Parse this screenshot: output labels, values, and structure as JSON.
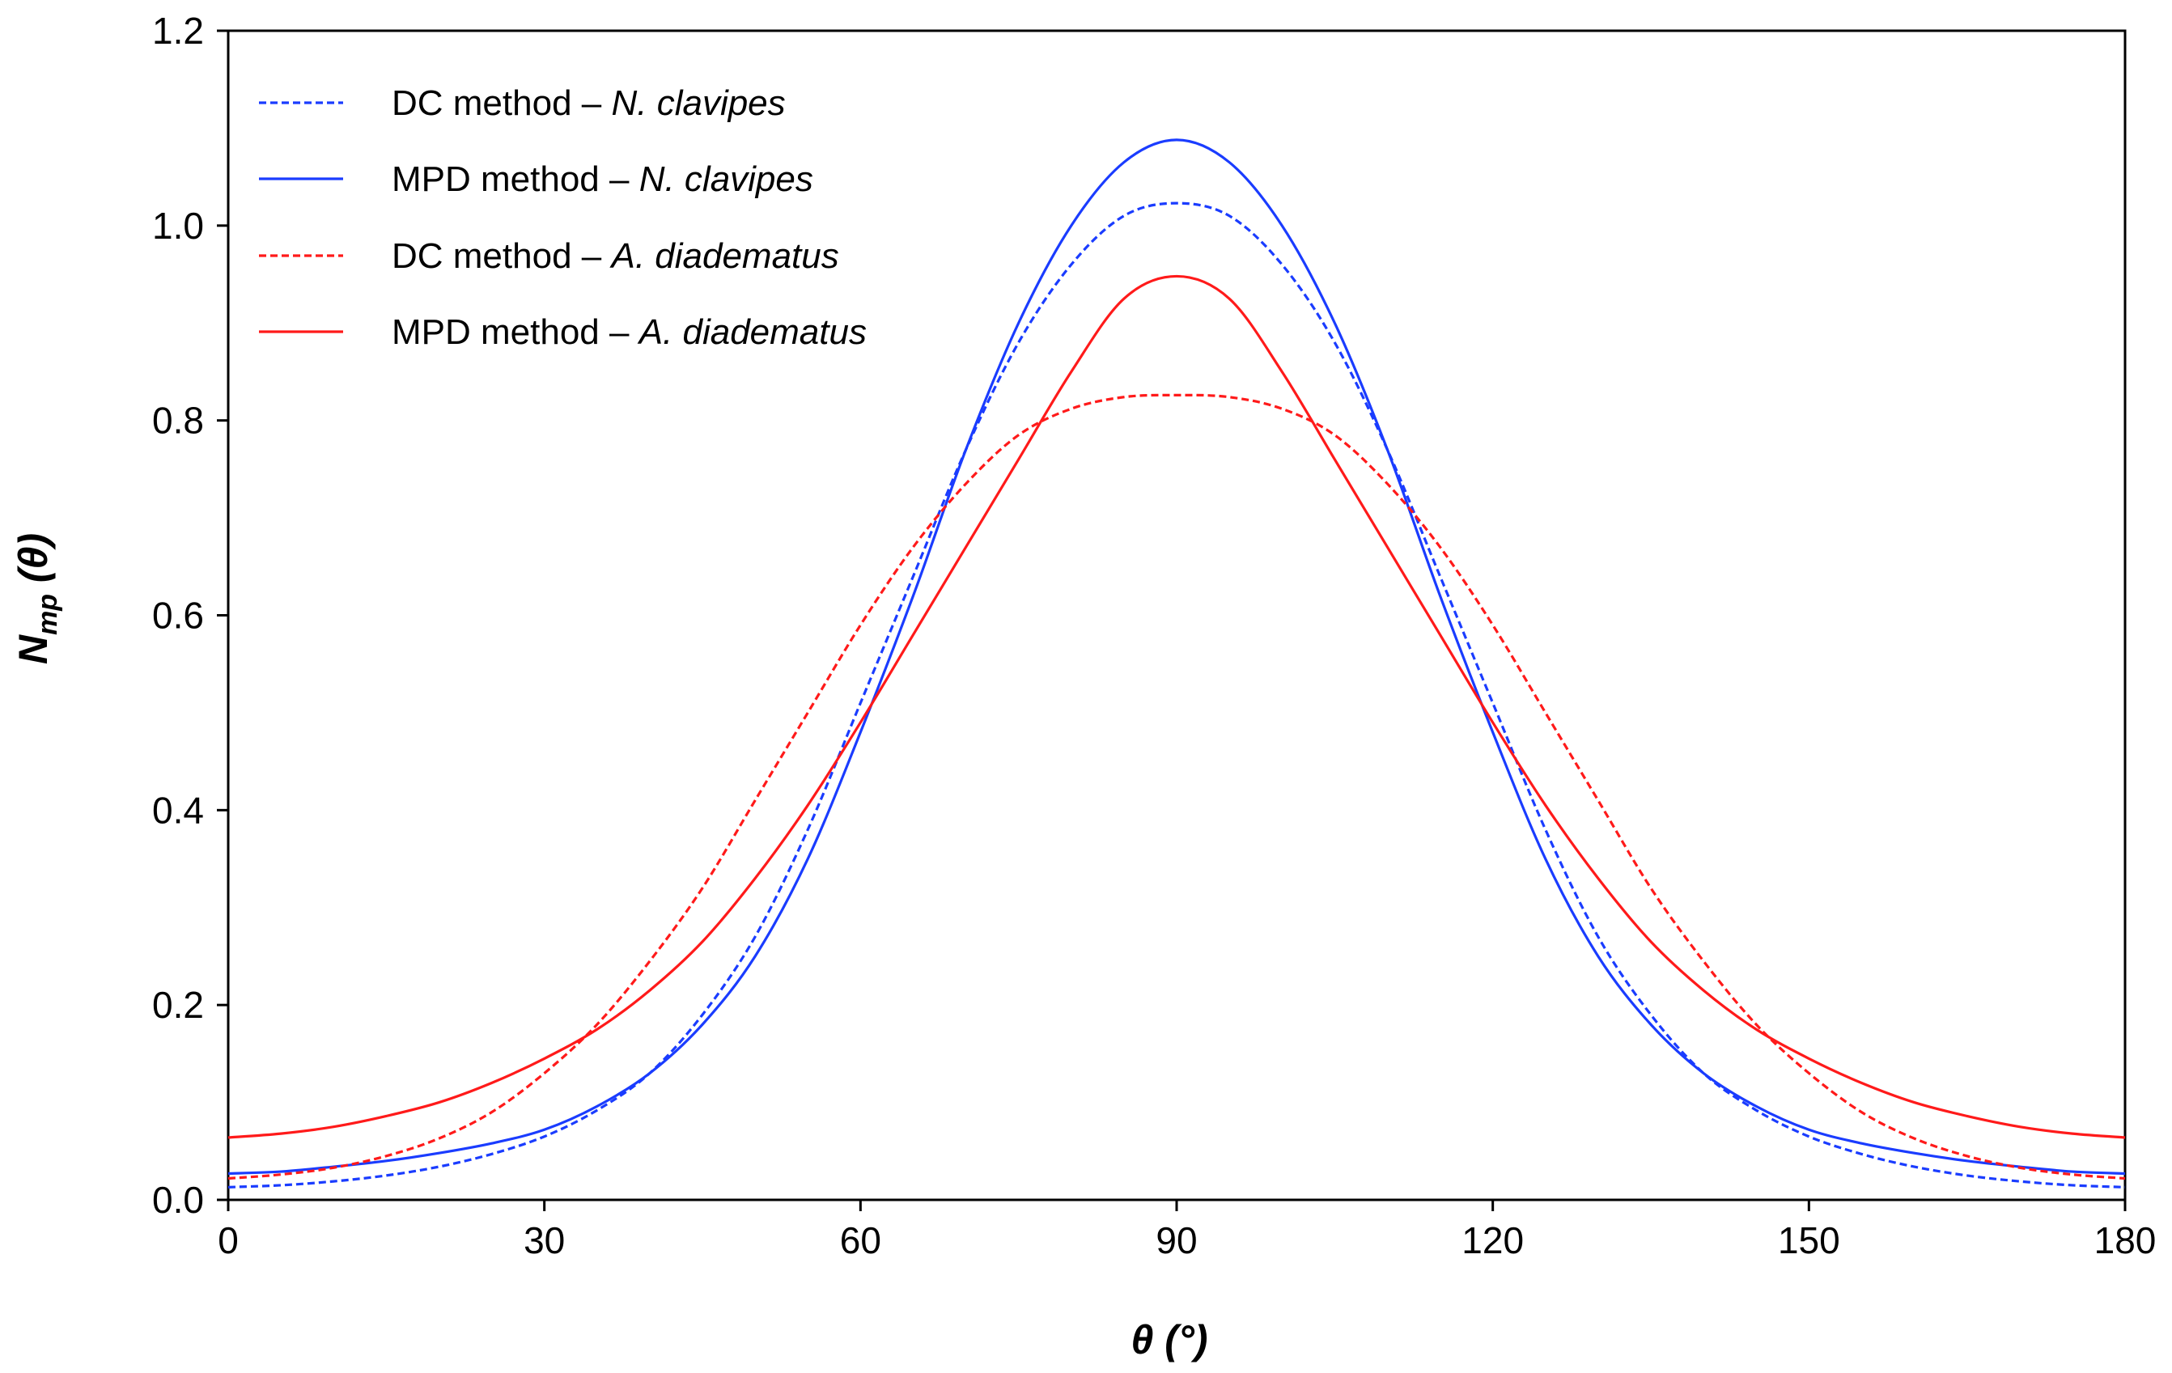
{
  "chart_data": {
    "type": "line",
    "title": "",
    "xlabel": {
      "symbol": "θ",
      "unit": " (°)"
    },
    "ylabel": {
      "base": "N",
      "subscript": "mp",
      "suffix": " (θ)"
    },
    "xlim": [
      0,
      180
    ],
    "ylim": [
      0,
      1.2
    ],
    "xticks": [
      0,
      30,
      60,
      90,
      120,
      150,
      180
    ],
    "yticks": [
      "0.0",
      "0.2",
      "0.4",
      "0.6",
      "0.8",
      "1.0",
      "1.2"
    ],
    "grid": false,
    "legend_position": "top-left",
    "x": [
      0,
      5,
      10,
      15,
      20,
      25,
      30,
      35,
      40,
      45,
      50,
      55,
      60,
      65,
      70,
      75,
      80,
      85,
      90,
      95,
      100,
      105,
      110,
      115,
      120,
      125,
      130,
      135,
      140,
      145,
      150,
      155,
      160,
      165,
      170,
      175,
      180
    ],
    "series": [
      {
        "name": "DC method – N. clavipes",
        "method": "DC method – ",
        "species": "N. clavipes",
        "color": "#1a3cff",
        "dashed": true,
        "values": [
          0.013,
          0.015,
          0.019,
          0.025,
          0.034,
          0.047,
          0.065,
          0.092,
          0.13,
          0.19,
          0.27,
          0.38,
          0.51,
          0.64,
          0.77,
          0.88,
          0.96,
          1.01,
          1.023,
          1.01,
          0.96,
          0.88,
          0.77,
          0.64,
          0.51,
          0.38,
          0.27,
          0.19,
          0.13,
          0.092,
          0.065,
          0.047,
          0.034,
          0.025,
          0.019,
          0.015,
          0.013
        ]
      },
      {
        "name": "MPD method – N. clavipes",
        "method": "MPD method – ",
        "species": "N. clavipes",
        "color": "#1a3cff",
        "dashed": false,
        "values": [
          0.027,
          0.029,
          0.034,
          0.04,
          0.048,
          0.058,
          0.072,
          0.096,
          0.13,
          0.18,
          0.25,
          0.35,
          0.48,
          0.62,
          0.77,
          0.9,
          1.0,
          1.065,
          1.088,
          1.065,
          1.0,
          0.9,
          0.77,
          0.62,
          0.48,
          0.35,
          0.25,
          0.18,
          0.13,
          0.096,
          0.072,
          0.058,
          0.048,
          0.04,
          0.034,
          0.029,
          0.027
        ]
      },
      {
        "name": "DC method – A. diadematus",
        "method": "DC method – ",
        "species": "A. diadematus",
        "color": "#ff1a1a",
        "dashed": true,
        "values": [
          0.022,
          0.026,
          0.033,
          0.045,
          0.063,
          0.09,
          0.13,
          0.18,
          0.245,
          0.32,
          0.41,
          0.5,
          0.59,
          0.67,
          0.735,
          0.785,
          0.812,
          0.824,
          0.826,
          0.824,
          0.812,
          0.785,
          0.735,
          0.67,
          0.59,
          0.5,
          0.41,
          0.32,
          0.245,
          0.18,
          0.13,
          0.09,
          0.063,
          0.045,
          0.033,
          0.026,
          0.022
        ]
      },
      {
        "name": "MPD method – A. diadematus",
        "method": "MPD method – ",
        "species": "A. diadematus",
        "color": "#ff1a1a",
        "dashed": false,
        "values": [
          0.064,
          0.068,
          0.075,
          0.086,
          0.1,
          0.12,
          0.145,
          0.175,
          0.215,
          0.265,
          0.33,
          0.405,
          0.49,
          0.58,
          0.67,
          0.76,
          0.85,
          0.925,
          0.948,
          0.925,
          0.85,
          0.76,
          0.67,
          0.58,
          0.49,
          0.405,
          0.33,
          0.265,
          0.215,
          0.175,
          0.145,
          0.12,
          0.1,
          0.086,
          0.075,
          0.068,
          0.064
        ]
      }
    ]
  }
}
